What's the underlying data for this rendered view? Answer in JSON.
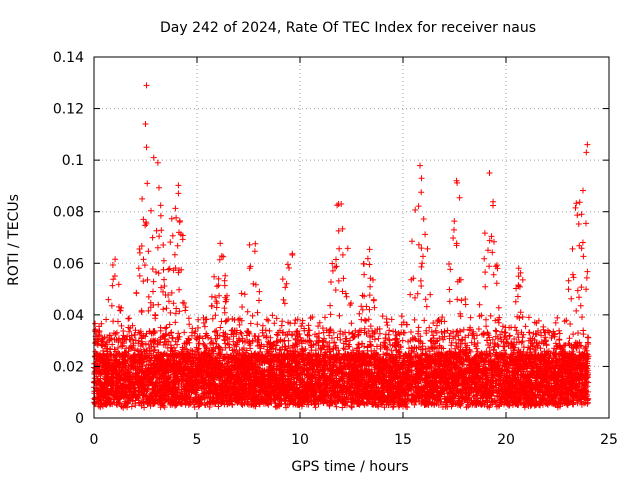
{
  "chart_data": {
    "type": "scatter",
    "title": "Day 242 of 2024, Rate Of TEC Index for receiver naus",
    "xlabel": "GPS time / hours",
    "ylabel": "ROTI / TECUs",
    "xlim": [
      0,
      25
    ],
    "ylim": [
      0,
      0.14
    ],
    "xticks": [
      0,
      5,
      10,
      15,
      20,
      25
    ],
    "yticks": [
      0,
      0.02,
      0.04,
      0.06,
      0.08,
      0.1,
      0.12,
      0.14
    ],
    "xtick_labels": [
      "0",
      "5",
      "10",
      "15",
      "20",
      "25"
    ],
    "ytick_labels": [
      "0",
      "0.02",
      "0.04",
      "0.06",
      "0.08",
      "0.1",
      "0.12",
      "0.14"
    ],
    "grid": true,
    "marker": "+",
    "marker_color": "#ff0000",
    "data_x_range": [
      0,
      24
    ],
    "baseline_band": [
      0.005,
      0.025
    ],
    "notable_points": [
      {
        "x": 2.55,
        "y": 0.129
      },
      {
        "x": 2.5,
        "y": 0.114
      },
      {
        "x": 2.55,
        "y": 0.105
      },
      {
        "x": 2.9,
        "y": 0.101
      },
      {
        "x": 3.1,
        "y": 0.099
      },
      {
        "x": 12.0,
        "y": 0.083
      },
      {
        "x": 15.9,
        "y": 0.093
      },
      {
        "x": 17.6,
        "y": 0.092
      },
      {
        "x": 19.2,
        "y": 0.095
      },
      {
        "x": 23.95,
        "y": 0.106
      },
      {
        "x": 23.9,
        "y": 0.103
      }
    ],
    "activity_peaks": [
      {
        "center": 1.0,
        "height": 0.055,
        "width": 0.35
      },
      {
        "center": 2.6,
        "height": 0.095,
        "width": 0.45
      },
      {
        "center": 3.2,
        "height": 0.085,
        "width": 0.35
      },
      {
        "center": 4.0,
        "height": 0.09,
        "width": 0.35
      },
      {
        "center": 6.1,
        "height": 0.058,
        "width": 0.4
      },
      {
        "center": 7.6,
        "height": 0.073,
        "width": 0.4
      },
      {
        "center": 9.5,
        "height": 0.062,
        "width": 0.4
      },
      {
        "center": 12.0,
        "height": 0.08,
        "width": 0.5
      },
      {
        "center": 13.3,
        "height": 0.058,
        "width": 0.4
      },
      {
        "center": 15.8,
        "height": 0.09,
        "width": 0.4
      },
      {
        "center": 17.6,
        "height": 0.088,
        "width": 0.35
      },
      {
        "center": 19.2,
        "height": 0.09,
        "width": 0.35
      },
      {
        "center": 20.7,
        "height": 0.053,
        "width": 0.3
      },
      {
        "center": 23.6,
        "height": 0.082,
        "width": 0.5
      }
    ]
  }
}
